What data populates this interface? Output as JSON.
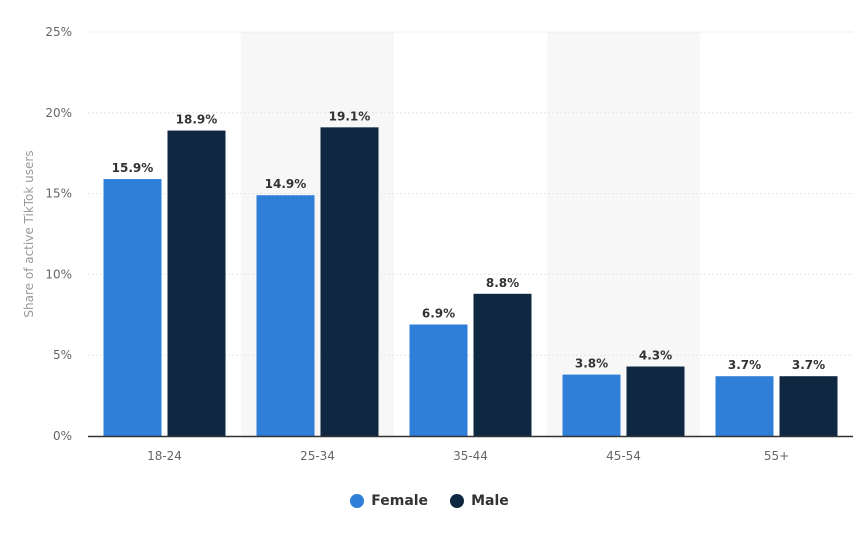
{
  "chart_data": {
    "type": "bar",
    "ylabel": "Share of active TikTok users",
    "ylim": [
      0,
      25
    ],
    "yticks": [
      0,
      5,
      10,
      15,
      20,
      25
    ],
    "ytick_labels": [
      "0%",
      "5%",
      "10%",
      "15%",
      "20%",
      "25%"
    ],
    "categories": [
      "18-24",
      "25-34",
      "35-44",
      "45-54",
      "55+"
    ],
    "series": [
      {
        "name": "Female",
        "color": "#2f7ed8",
        "values": [
          15.9,
          14.9,
          6.9,
          3.8,
          3.7
        ],
        "labels": [
          "15.9%",
          "14.9%",
          "6.9%",
          "3.8%",
          "3.7%"
        ]
      },
      {
        "name": "Male",
        "color": "#0f2740",
        "values": [
          18.9,
          19.1,
          8.8,
          4.3,
          3.7
        ],
        "labels": [
          "18.9%",
          "19.1%",
          "8.8%",
          "4.3%",
          "3.7%"
        ]
      }
    ],
    "grid": true,
    "legend_position": "bottom-center"
  }
}
